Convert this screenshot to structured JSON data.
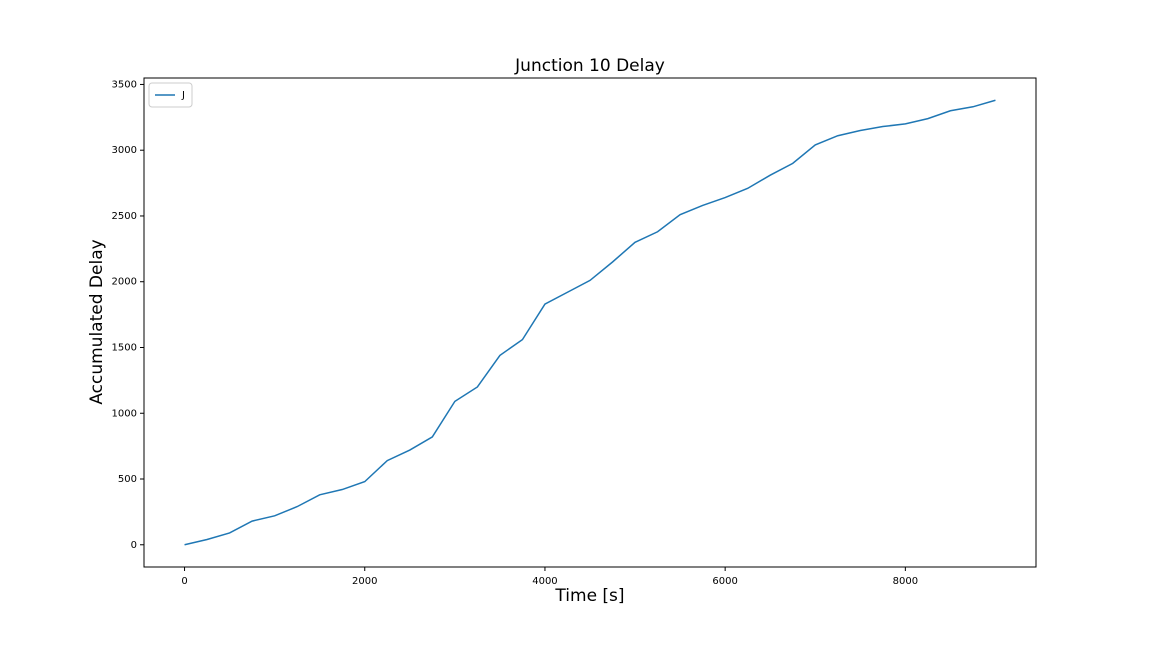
{
  "chart_data": {
    "type": "line",
    "title": "Junction 10 Delay",
    "xlabel": "Time [s]",
    "ylabel": "Accumulated Delay",
    "x": [
      0,
      250,
      500,
      750,
      1000,
      1250,
      1500,
      1750,
      2000,
      2250,
      2500,
      2750,
      3000,
      3250,
      3500,
      3750,
      4000,
      4250,
      4500,
      4750,
      5000,
      5250,
      5500,
      5750,
      6000,
      6250,
      6500,
      6750,
      7000,
      7250,
      7500,
      7750,
      8000,
      8250,
      8500,
      8750,
      9000
    ],
    "series": [
      {
        "name": "J",
        "color": "#1f77b4",
        "values": [
          0,
          40,
          90,
          180,
          220,
          290,
          380,
          420,
          480,
          640,
          720,
          820,
          1090,
          1200,
          1440,
          1560,
          1830,
          1920,
          2010,
          2150,
          2300,
          2380,
          2510,
          2580,
          2640,
          2710,
          2810,
          2900,
          3040,
          3110,
          3150,
          3180,
          3200,
          3240,
          3300,
          3330,
          3380
        ]
      }
    ],
    "xlim": [
      -450,
      9450
    ],
    "xticks": [
      0,
      2000,
      4000,
      6000,
      8000
    ],
    "ylim": [
      -169,
      3549
    ],
    "yticks": [
      0,
      500,
      1000,
      1500,
      2000,
      2500,
      3000,
      3500
    ],
    "legend": "upper left",
    "grid": false
  }
}
